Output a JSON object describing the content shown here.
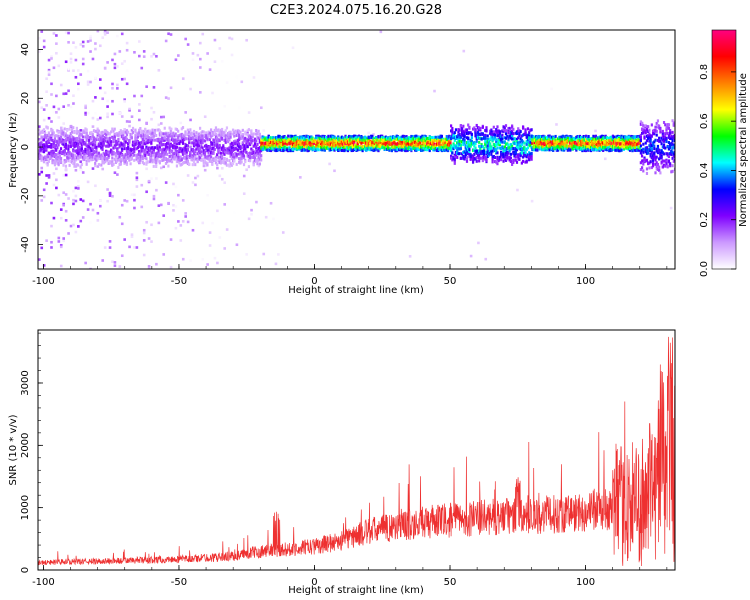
{
  "title": "C2E3.2024.075.16.20.G28",
  "chart_data": [
    {
      "type": "heatmap",
      "xlabel": "Height of straight line (km)",
      "ylabel": "Frequency (Hz)",
      "xlim": [
        -102,
        133
      ],
      "ylim": [
        -50,
        48
      ],
      "xticks": [
        -100,
        -50,
        0,
        50,
        100
      ],
      "yticks": [
        -40,
        -20,
        0,
        20,
        40
      ],
      "colorbar": {
        "label": "Normalized spectral amplitude",
        "range": [
          0,
          0.97
        ],
        "ticks": [
          "0.0",
          "0.2",
          "0.4",
          "0.6",
          "0.8"
        ],
        "colors": [
          "#ffffff",
          "#cc99ff",
          "#7f00ff",
          "#0000ff",
          "#00ffff",
          "#00ff00",
          "#ffff00",
          "#ff8000",
          "#ff0000",
          "#ff0080"
        ]
      },
      "ridge": {
        "segments": [
          {
            "x": [
              -102,
              -20
            ],
            "freq": 0,
            "amplitude": 0.25,
            "spread": 7
          },
          {
            "x": [
              -20,
              50
            ],
            "freq": 1.5,
            "amplitude": 0.97,
            "spread": 3
          },
          {
            "x": [
              50,
              80
            ],
            "freq": 1,
            "amplitude": 0.55,
            "spread": 7
          },
          {
            "x": [
              80,
              120
            ],
            "freq": 1.5,
            "amplitude": 0.97,
            "spread": 3
          },
          {
            "x": [
              120,
              133
            ],
            "freq": 0,
            "amplitude": 0.4,
            "spread": 10
          }
        ]
      }
    },
    {
      "type": "line",
      "xlabel": "Height of straight line (km)",
      "ylabel": "SNR (10 * v/v)",
      "xlim": [
        -102,
        133
      ],
      "ylim": [
        0,
        3850
      ],
      "xticks": [
        -100,
        -50,
        0,
        50,
        100
      ],
      "yticks": [
        0,
        1000,
        2000,
        3000
      ],
      "color": "#ee3030",
      "trend": [
        {
          "x": -102,
          "snr": 120
        },
        {
          "x": -80,
          "snr": 140
        },
        {
          "x": -50,
          "snr": 170
        },
        {
          "x": -30,
          "snr": 220
        },
        {
          "x": -20,
          "snr": 300
        },
        {
          "x": -10,
          "snr": 330
        },
        {
          "x": 0,
          "snr": 380
        },
        {
          "x": 10,
          "snr": 470
        },
        {
          "x": 20,
          "snr": 620
        },
        {
          "x": 30,
          "snr": 700
        },
        {
          "x": 40,
          "snr": 760
        },
        {
          "x": 50,
          "snr": 800
        },
        {
          "x": 60,
          "snr": 830
        },
        {
          "x": 70,
          "snr": 860
        },
        {
          "x": 80,
          "snr": 870
        },
        {
          "x": 90,
          "snr": 900
        },
        {
          "x": 100,
          "snr": 930
        },
        {
          "x": 110,
          "snr": 980
        },
        {
          "x": 120,
          "snr": 1100
        },
        {
          "x": 125,
          "snr": 1250
        },
        {
          "x": 130,
          "snr": 1500
        },
        {
          "x": 133,
          "snr": 1600
        }
      ],
      "peaks": [
        {
          "x": -14,
          "snr": 950
        },
        {
          "x": 75,
          "snr": 1500
        },
        {
          "x": 128,
          "snr": 3400
        },
        {
          "x": 131,
          "snr": 3800
        }
      ]
    }
  ]
}
